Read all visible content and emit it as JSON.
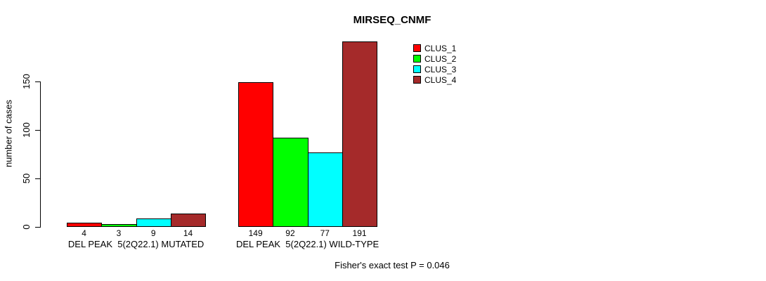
{
  "chart_data": {
    "type": "bar",
    "title": "MIRSEQ_CNMF",
    "ylabel": "number of cases",
    "xlabel": "",
    "ylim": [
      0,
      150
    ],
    "yticks": [
      0,
      50,
      100,
      150
    ],
    "grid": false,
    "legend_position": "top-right",
    "categories": [
      "DEL PEAK  5(2Q22.1) MUTATED",
      "DEL PEAK  5(2Q22.1) WILD-TYPE"
    ],
    "series": [
      {
        "name": "CLUS_1",
        "color": "#FF0000",
        "values": [
          4,
          149
        ]
      },
      {
        "name": "CLUS_2",
        "color": "#00FF00",
        "values": [
          3,
          92
        ]
      },
      {
        "name": "CLUS_3",
        "color": "#00FFFF",
        "values": [
          9,
          77
        ]
      },
      {
        "name": "CLUS_4",
        "color": "#A52A2A",
        "values": [
          14,
          191
        ]
      }
    ],
    "bar_value_labels": [
      [
        4,
        3,
        9,
        14
      ],
      [
        149,
        92,
        77,
        191
      ]
    ],
    "annotation": "Fisher's exact test P = 0.046"
  }
}
